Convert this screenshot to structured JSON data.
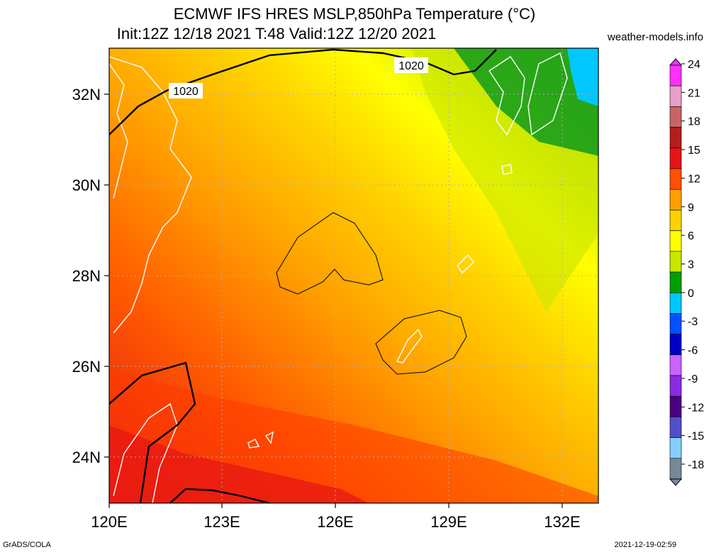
{
  "title_line1": "ECMWF IFS HRES MSLP,850hPa Temperature (°C)",
  "title_line2": "Init:12Z 12/18 2021 T:48 Valid:12Z 12/20 2021",
  "site": "weather-models.info",
  "footer_left": "GrADS/COLA",
  "footer_right": "2021-12-19-02:59",
  "map": {
    "lon_labels": [
      "120E",
      "123E",
      "126E",
      "129E",
      "132E"
    ],
    "lat_labels": [
      "32N",
      "30N",
      "28N",
      "26N",
      "24N"
    ],
    "isobar_labels": [
      "1020",
      "1020"
    ]
  },
  "colorbar": {
    "ticks": [
      "24",
      "21",
      "18",
      "15",
      "12",
      "9",
      "6",
      "3",
      "0",
      "-3",
      "-6",
      "-9",
      "-12",
      "-15",
      "-18"
    ],
    "colors": [
      "#ff30ff",
      "#e8a0c8",
      "#c86464",
      "#b41e1e",
      "#e61414",
      "#ff5000",
      "#ffa000",
      "#ffd200",
      "#ffff00",
      "#c8e600",
      "#00a000",
      "#00c8ff",
      "#0050ff",
      "#0000c8",
      "#c864ff",
      "#8a2be2",
      "#4b0082",
      "#5050c8",
      "#87cefa",
      "#778899"
    ]
  }
}
